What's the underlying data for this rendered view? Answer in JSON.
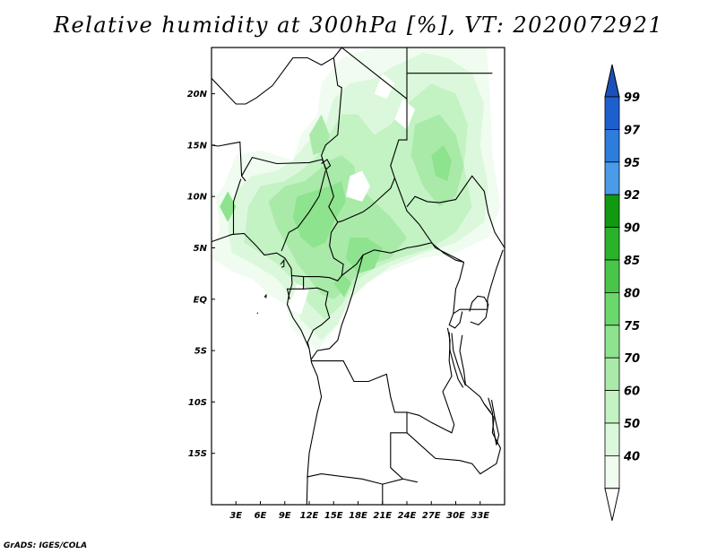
{
  "title": "Relative humidity at 300hPa [%], VT: 2020072921",
  "credit": "GrADS: IGES/COLA",
  "map": {
    "lon_range": [
      0,
      36
    ],
    "lat_range": [
      -20,
      24.5
    ],
    "lat_ticks": [
      {
        "value": 20,
        "label": "20N"
      },
      {
        "value": 15,
        "label": "15N"
      },
      {
        "value": 10,
        "label": "10N"
      },
      {
        "value": 5,
        "label": "5N"
      },
      {
        "value": 0,
        "label": "EQ"
      },
      {
        "value": -5,
        "label": "5S"
      },
      {
        "value": -10,
        "label": "10S"
      },
      {
        "value": -15,
        "label": "15S"
      }
    ],
    "lon_ticks": [
      {
        "value": 3,
        "label": "3E"
      },
      {
        "value": 6,
        "label": "6E"
      },
      {
        "value": 9,
        "label": "9E"
      },
      {
        "value": 12,
        "label": "12E"
      },
      {
        "value": 15,
        "label": "15E"
      },
      {
        "value": 18,
        "label": "18E"
      },
      {
        "value": 21,
        "label": "21E"
      },
      {
        "value": 24,
        "label": "24E"
      },
      {
        "value": 27,
        "label": "27E"
      },
      {
        "value": 30,
        "label": "30E"
      },
      {
        "value": 33,
        "label": "33E"
      }
    ]
  },
  "colorbar": {
    "levels": [
      "99",
      "97",
      "95",
      "92",
      "90",
      "85",
      "80",
      "75",
      "70",
      "60",
      "50",
      "40"
    ],
    "colors": [
      "#1e5fd0",
      "#2c7ddc",
      "#4a9be8",
      "#119a11",
      "#2bb22b",
      "#49c649",
      "#6ad86a",
      "#8ee38e",
      "#a9eaa9",
      "#c3f2c3",
      "#dcf8dc",
      "#f0fcf0"
    ],
    "cap_top_color": "#1c4fb8",
    "cap_bottom_color": "#ffffff"
  }
}
